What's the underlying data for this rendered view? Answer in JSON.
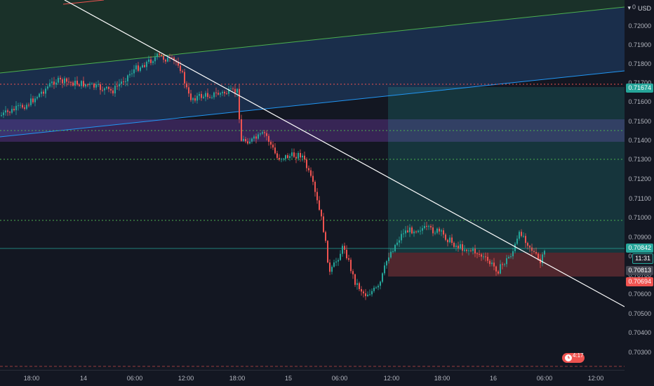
{
  "price_axis": {
    "currency": "USD",
    "ticks": [
      "0.72100",
      "0.72000",
      "0.71900",
      "0.71800",
      "0.71700",
      "0.71600",
      "0.71500",
      "0.71400",
      "0.71300",
      "0.71200",
      "0.71100",
      "0.71000",
      "0.70900",
      "0.70800",
      "0.70700",
      "0.70600",
      "0.70500",
      "0.70400",
      "0.70300"
    ],
    "tags": [
      {
        "id": "top",
        "text": "0.71674",
        "color": "#26a69a"
      },
      {
        "id": "last",
        "text": "0.70842",
        "color": "#26a69a"
      },
      {
        "id": "countdown",
        "text": "11:31",
        "color": "#1e222d"
      },
      {
        "id": "bid",
        "text": "0.70813",
        "color": "#434651"
      },
      {
        "id": "stop",
        "text": "0.70694",
        "color": "#ef5350"
      }
    ]
  },
  "time_axis": {
    "ticks": [
      "18:00",
      "14",
      "06:00",
      "12:00",
      "18:00",
      "15",
      "06:00",
      "12:00",
      "18:00",
      "16",
      "06:00",
      "12:00"
    ]
  },
  "badge": {
    "text": "4:17"
  },
  "colors": {
    "bg": "#131722",
    "up": "#26a69a",
    "down": "#ef5350",
    "channel_top": "#4caf50",
    "channel_bottom": "#2196f3",
    "trendline": "#ffffff",
    "zone_purple": "#7b3fb5",
    "level_dotted_red": "#ef5350",
    "level_dotted_green": "#4caf50"
  }
}
